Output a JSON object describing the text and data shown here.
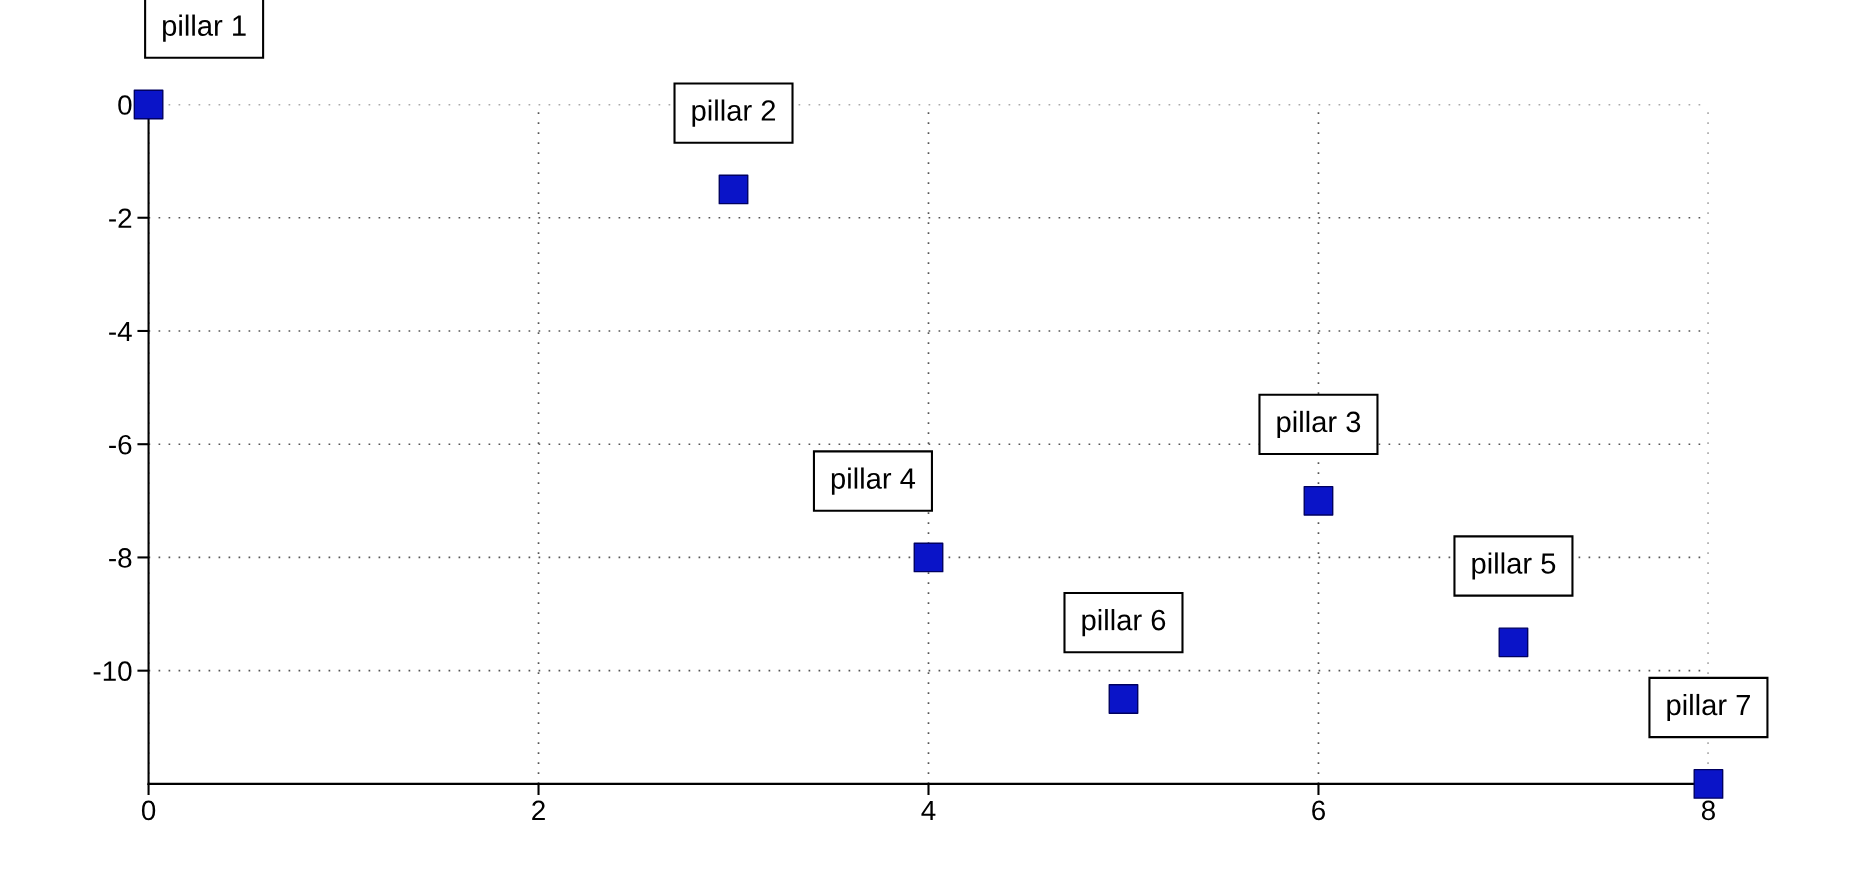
{
  "chart_data": {
    "type": "scatter",
    "x": [
      0,
      3,
      6,
      4,
      7,
      5,
      8
    ],
    "values": [
      0,
      -1.5,
      -7,
      -8,
      -9.5,
      -10.5,
      -12
    ],
    "color": "#0a14c8",
    "marker": "square",
    "xlim": [
      0,
      8
    ],
    "ylim": [
      -12,
      0
    ],
    "xticks": [
      0,
      2,
      4,
      6,
      8
    ],
    "yticks": [
      0,
      -2,
      -4,
      -6,
      -8,
      -10
    ],
    "grid": true,
    "annotations": [
      {
        "text": "pillar 1",
        "x": 0,
        "y": 0
      },
      {
        "text": "pillar 2",
        "x": 3,
        "y": -1.5
      },
      {
        "text": "pillar 3",
        "x": 6,
        "y": -7
      },
      {
        "text": "pillar 4",
        "x": 4,
        "y": -8
      },
      {
        "text": "pillar 5",
        "x": 7,
        "y": -9.5
      },
      {
        "text": "pillar 6",
        "x": 5,
        "y": -10.5
      },
      {
        "text": "pillar 7",
        "x": 8,
        "y": -12
      }
    ]
  }
}
